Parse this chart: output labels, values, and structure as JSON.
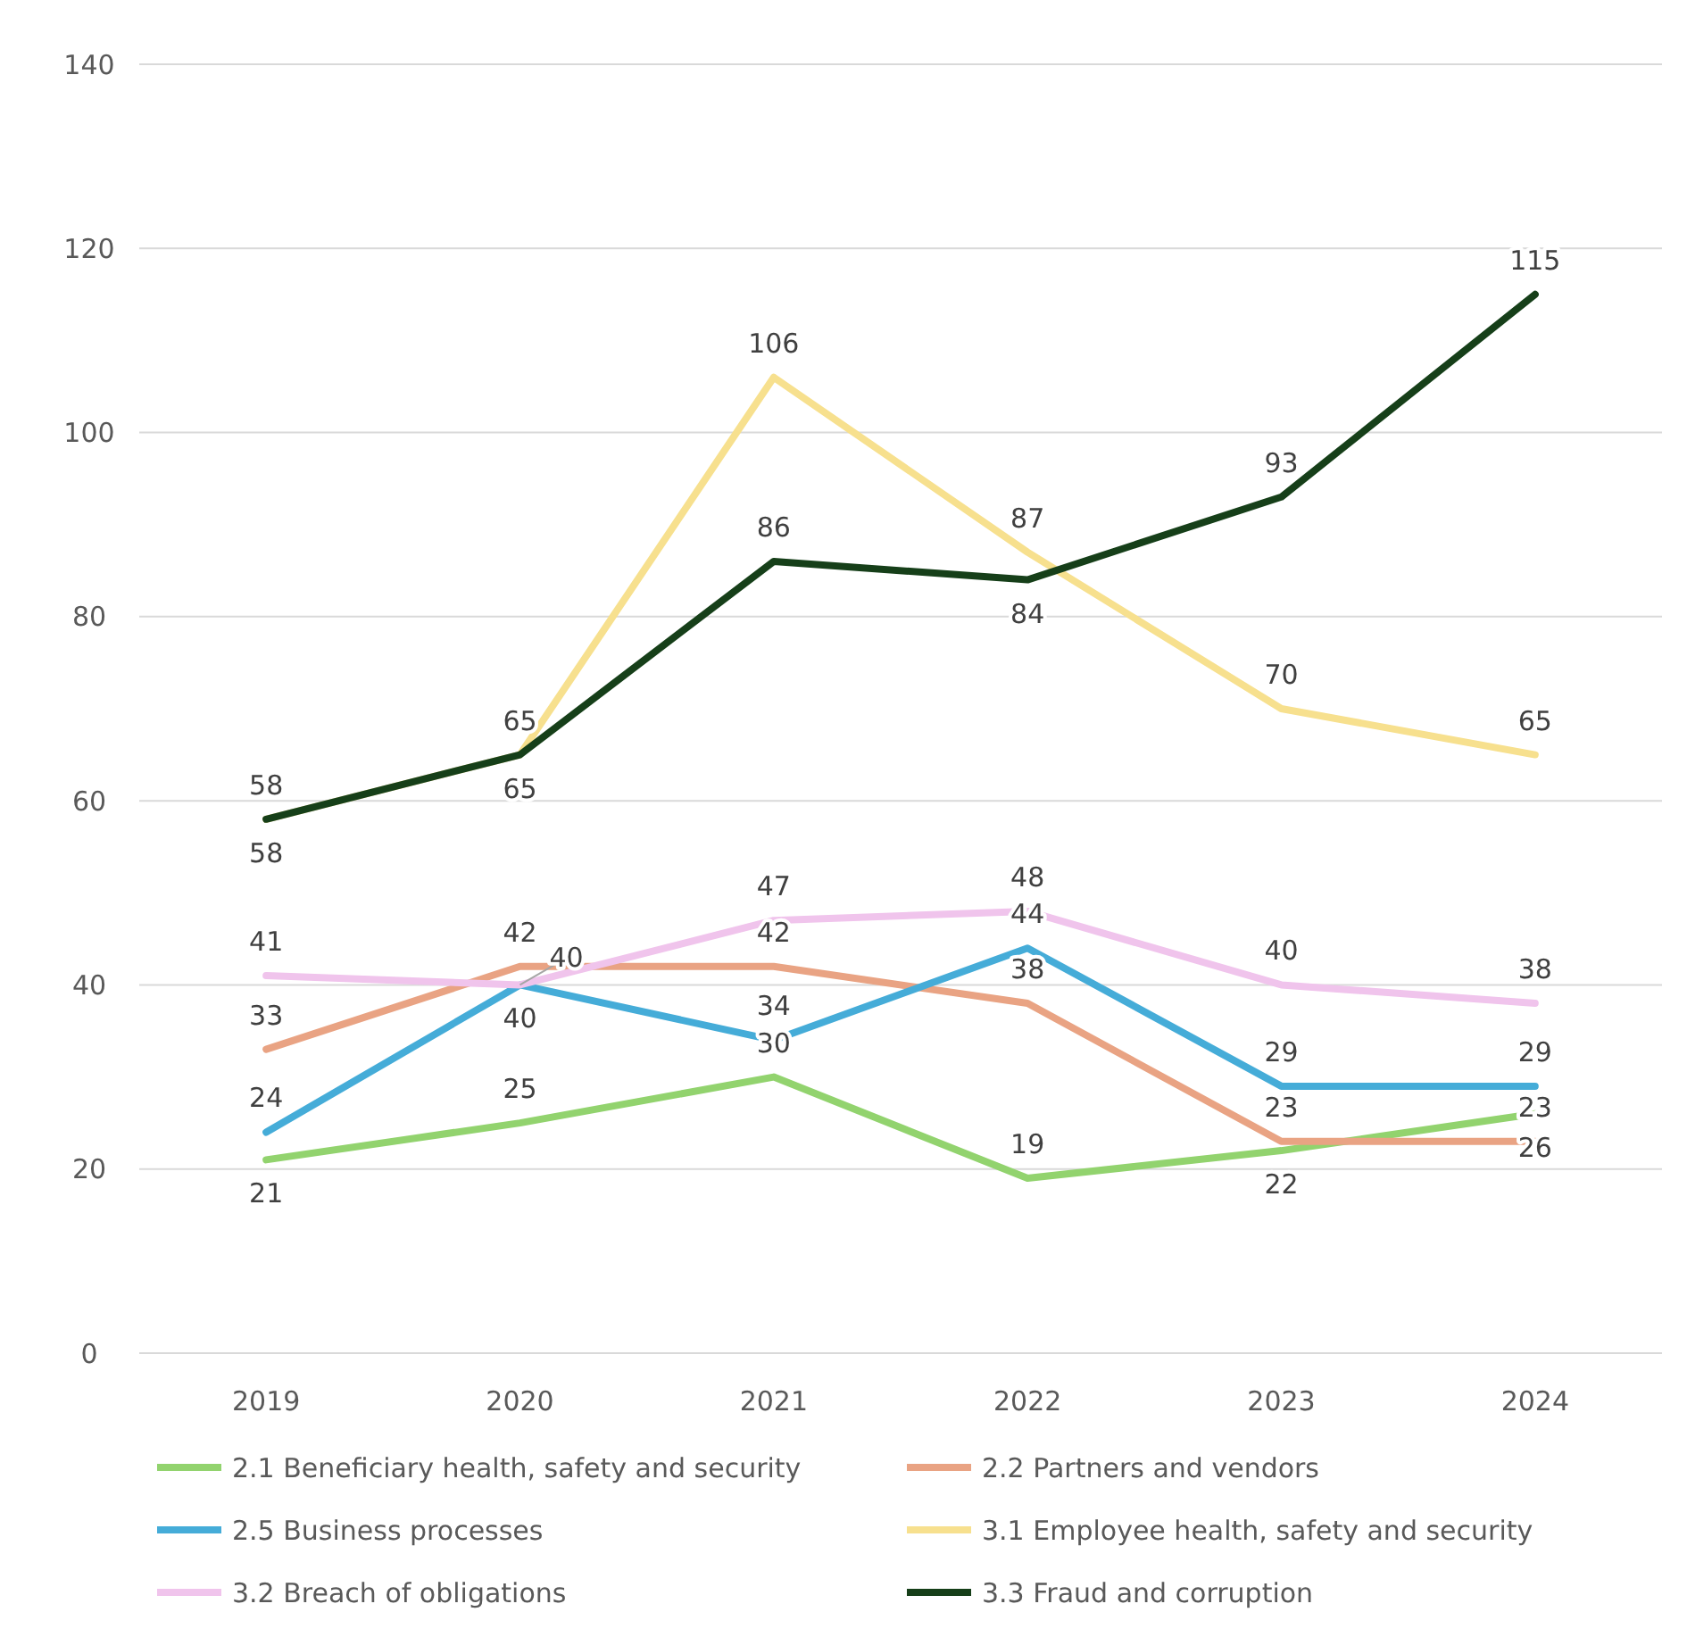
{
  "chart_data": {
    "type": "line",
    "categories": [
      "2019",
      "2020",
      "2021",
      "2022",
      "2023",
      "2024"
    ],
    "ylim": [
      0,
      140
    ],
    "yticks": [
      0,
      20,
      40,
      60,
      80,
      100,
      120,
      140
    ],
    "grid": "y",
    "legend": "bottom",
    "data_labels": true,
    "marker": "none",
    "line_style": "solid",
    "series": [
      {
        "name": "2.1 Beneficiary health, safety and security",
        "color": "#92d36e",
        "values": [
          21,
          25,
          30,
          19,
          22,
          26
        ]
      },
      {
        "name": "2.2 Partners and vendors",
        "color": "#e9a383",
        "values": [
          33,
          42,
          42,
          38,
          23,
          23
        ]
      },
      {
        "name": "2.5 Business processes",
        "color": "#45acd8",
        "values": [
          24,
          40,
          34,
          44,
          29,
          29
        ]
      },
      {
        "name": "3.1 Employee health, safety and security",
        "color": "#f7e08e",
        "values": [
          58,
          65,
          106,
          87,
          70,
          65
        ]
      },
      {
        "name": "3.2 Breach of obligations",
        "color": "#f0c4ec",
        "values": [
          41,
          40,
          47,
          48,
          40,
          38
        ]
      },
      {
        "name": "3.3 Fraud and corruption",
        "color": "#163f19",
        "values": [
          58,
          65,
          86,
          84,
          93,
          115
        ]
      }
    ]
  }
}
